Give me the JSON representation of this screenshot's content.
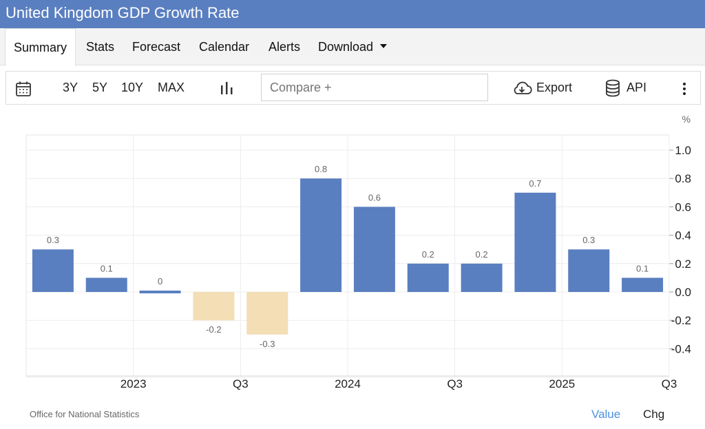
{
  "header": {
    "title": "United Kingdom GDP Growth Rate"
  },
  "tabs": [
    {
      "label": "Summary",
      "active": true
    },
    {
      "label": "Stats"
    },
    {
      "label": "Forecast"
    },
    {
      "label": "Calendar"
    },
    {
      "label": "Alerts"
    },
    {
      "label": "Download"
    }
  ],
  "toolbar": {
    "ranges": [
      "3Y",
      "5Y",
      "10Y",
      "MAX"
    ],
    "compare_placeholder": "Compare +",
    "export_label": "Export",
    "api_label": "API"
  },
  "colors": {
    "header": "#5a7fc0",
    "positive": "#5a7fc0",
    "negative": "#f3deb5",
    "active_link": "#4a90e2"
  },
  "chart_data": {
    "type": "bar",
    "unit": "%",
    "values": [
      0.3,
      0.1,
      0,
      -0.2,
      -0.3,
      0.8,
      0.6,
      0.2,
      0.2,
      0.7,
      0.3,
      0.1
    ],
    "data_labels": [
      "0.3",
      "0.1",
      "0",
      "-0.2",
      "-0.3",
      "0.8",
      "0.6",
      "0.2",
      "0.2",
      "0.7",
      "0.3",
      "0.1"
    ],
    "x_tick_labels": [
      {
        "label": "2023",
        "after_index": 1
      },
      {
        "label": "Q3",
        "after_index": 3
      },
      {
        "label": "2024",
        "after_index": 5
      },
      {
        "label": "Q3",
        "after_index": 7
      },
      {
        "label": "2025",
        "after_index": 9
      },
      {
        "label": "Q3",
        "after_index": 11
      }
    ],
    "y_ticks": [
      "1.0",
      "0.8",
      "0.6",
      "0.4",
      "0.2",
      "0.0",
      "-0.2",
      "-0.4"
    ],
    "y_tick_values": [
      1.0,
      0.8,
      0.6,
      0.4,
      0.2,
      0.0,
      -0.2,
      -0.4
    ],
    "ylim": [
      -0.6,
      1.1
    ],
    "grid": true,
    "y_axis_position": "right"
  },
  "footer": {
    "source": "Office for National Statistics",
    "tabs": [
      "Value",
      "Chg"
    ]
  }
}
